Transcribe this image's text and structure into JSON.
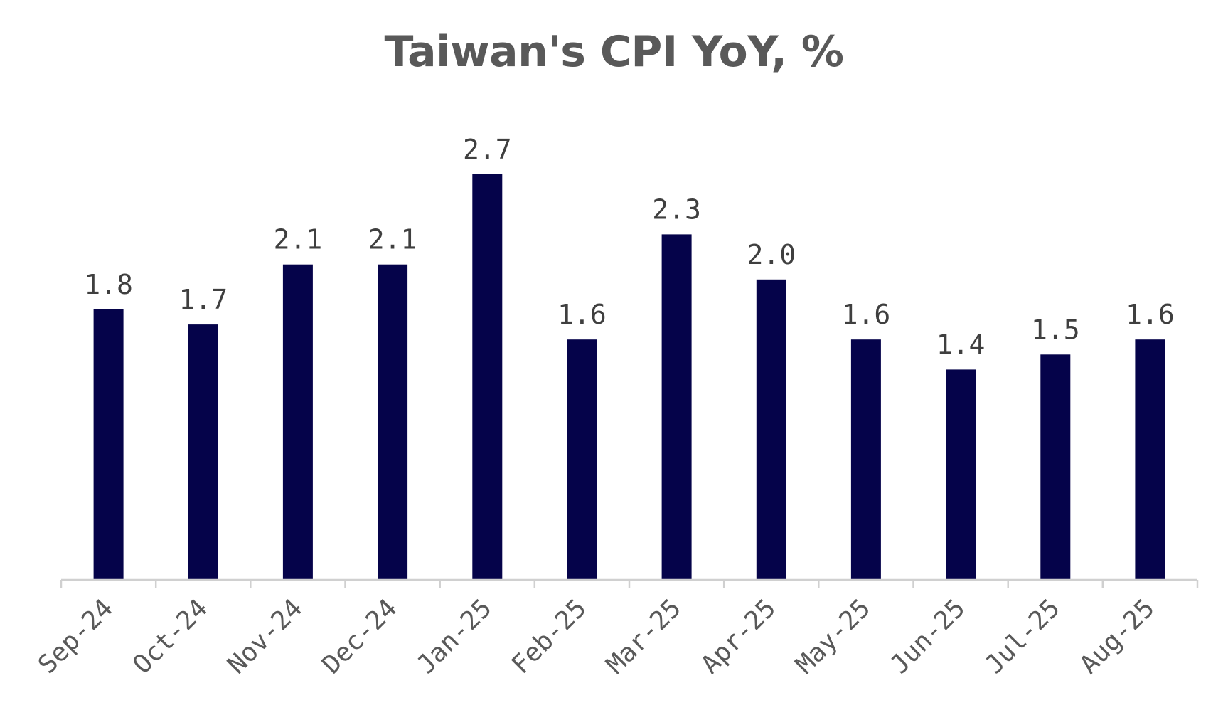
{
  "chart_data": {
    "type": "bar",
    "title": "Taiwan's CPI YoY, %",
    "xlabel": "",
    "ylabel": "",
    "categories": [
      "Sep-24",
      "Oct-24",
      "Nov-24",
      "Dec-24",
      "Jan-25",
      "Feb-25",
      "Mar-25",
      "Apr-25",
      "May-25",
      "Jun-25",
      "Jul-25",
      "Aug-25"
    ],
    "values": [
      1.8,
      1.7,
      2.1,
      2.1,
      2.7,
      1.6,
      2.3,
      2.0,
      1.6,
      1.4,
      1.5,
      1.6
    ],
    "data_labels": [
      "1.8",
      "1.7",
      "2.1",
      "2.1",
      "2.7",
      "1.6",
      "2.3",
      "2.0",
      "1.6",
      "1.4",
      "1.5",
      "1.6"
    ],
    "ylim": [
      0,
      2.7
    ],
    "grid": false,
    "legend": "none",
    "colors": {
      "bar": "#05034a",
      "title": "#595959",
      "axis": "#d0d0d0",
      "labels": "#3f3f3f"
    }
  }
}
